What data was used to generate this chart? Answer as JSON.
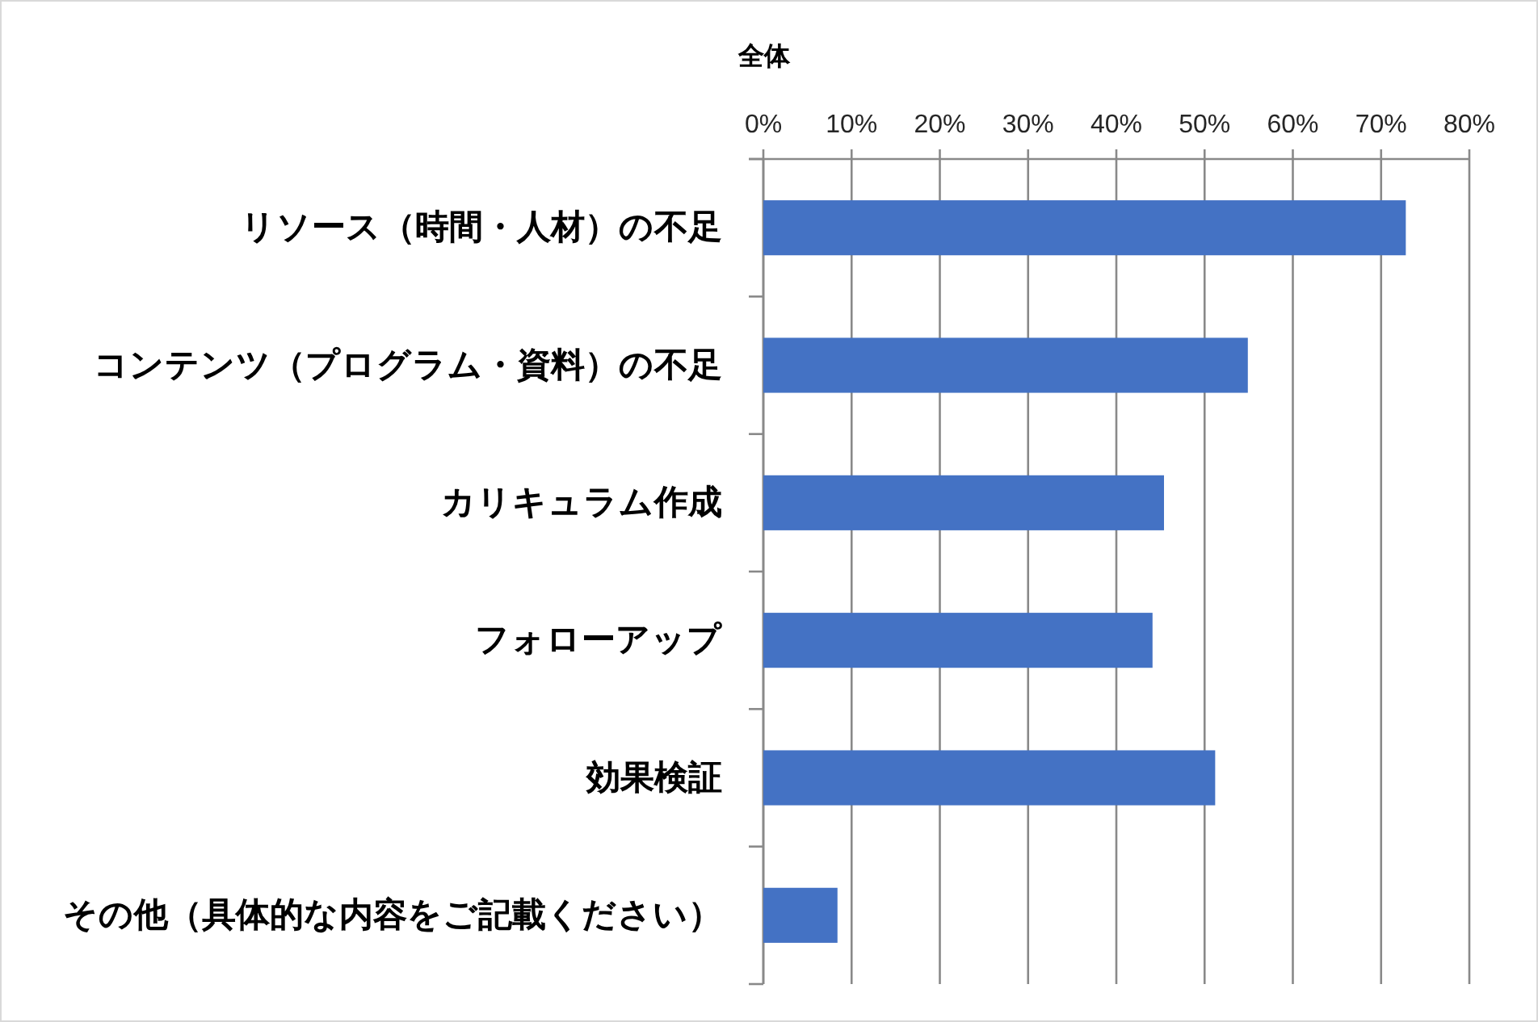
{
  "chart_data": {
    "type": "bar",
    "orientation": "horizontal",
    "title": "全体",
    "categories": [
      "リソース（時間・人材）の不足",
      "コンテンツ（プログラム・資料）の不足",
      "カリキュラム作成",
      "フォローアップ",
      "効果検証",
      "その他（具体的な内容をご記載ください）"
    ],
    "values": [
      72.8,
      54.9,
      45.4,
      44.1,
      51.2,
      8.4
    ],
    "color": "#4472c4",
    "xlim": [
      0,
      80
    ],
    "xticks": [
      {
        "value": 0,
        "label": "0%"
      },
      {
        "value": 10,
        "label": "10%"
      },
      {
        "value": 20,
        "label": "20%"
      },
      {
        "value": 30,
        "label": "30%"
      },
      {
        "value": 40,
        "label": "40%"
      },
      {
        "value": 50,
        "label": "50%"
      },
      {
        "value": 60,
        "label": "60%"
      },
      {
        "value": 70,
        "label": "70%"
      },
      {
        "value": 80,
        "label": "80%"
      }
    ],
    "grid": "x"
  }
}
